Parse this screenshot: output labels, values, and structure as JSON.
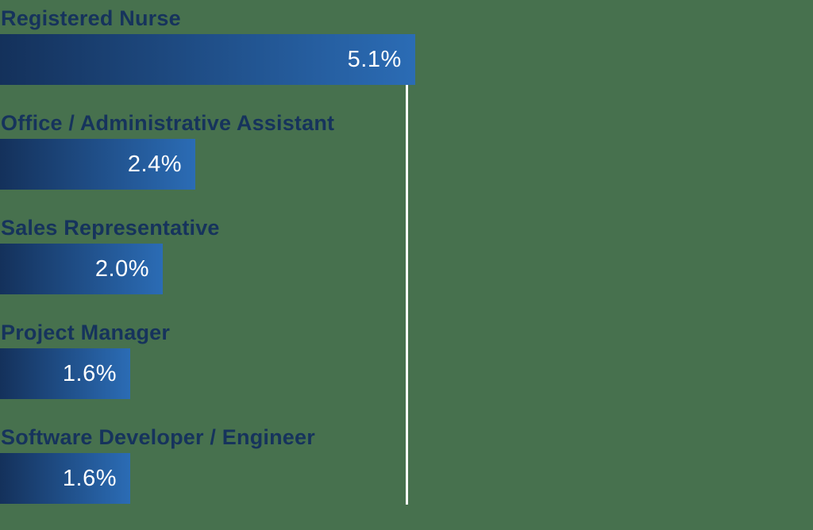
{
  "chart_data": {
    "type": "bar",
    "orientation": "horizontal",
    "title": "",
    "categories": [
      "Registered Nurse",
      "Office / Administrative Assistant",
      "Sales Representative",
      "Project Manager",
      "Software Developer / Engineer"
    ],
    "values": [
      5.1,
      2.4,
      2.0,
      1.6,
      1.6
    ],
    "value_labels": [
      "5.1%",
      "2.4%",
      "2.0%",
      "1.6%",
      "1.6%"
    ],
    "axis": {
      "x_min": 0,
      "x_max": 10,
      "unit": "%",
      "gridline_values": [
        5
      ],
      "tick_labels_visible": false
    },
    "legend_position": "none",
    "grid": "single vertical gridline at 5%"
  },
  "colors": {
    "background": "#47714E",
    "bar_gradient_start": "#14315B",
    "bar_gradient_end": "#2B6CB5",
    "category_label": "#16335C",
    "value_label": "#FFFFFF",
    "gridline": "#FFFFFF"
  }
}
